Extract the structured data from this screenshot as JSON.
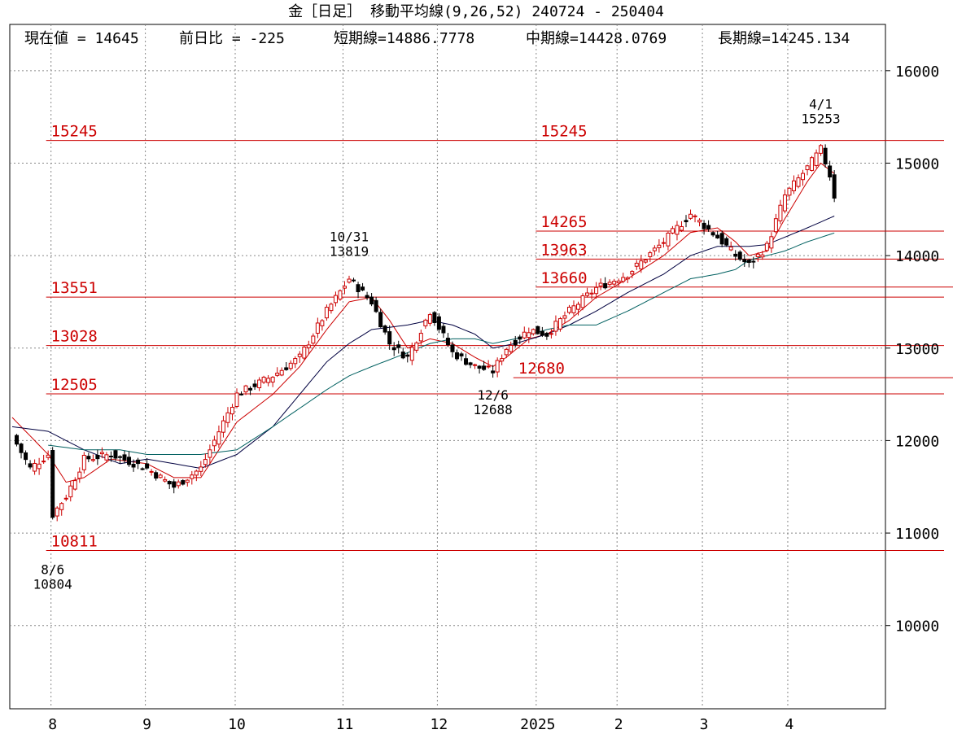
{
  "title": "金［日足］ 移動平均線(9,26,52) 240724 - 250404",
  "info": {
    "current": "現在値 = 14645",
    "change": "前日比 = -225",
    "short": "短期線=14886.7778",
    "mid": "中期線=14428.0769",
    "long": "長期線=14245.134"
  },
  "colors": {
    "bull": "#cc0000",
    "bear": "#000000",
    "ma_short": "#cc0000",
    "ma_mid": "#000040",
    "ma_long": "#006060",
    "level": "#cc0000",
    "grid": "#888888"
  },
  "chart_data": {
    "type": "candlestick",
    "title": "金［日足］ 移動平均線(9,26,52) 240724 - 250404",
    "ylim": [
      9100,
      16500
    ],
    "y_ticks": [
      10000,
      11000,
      12000,
      13000,
      14000,
      15000,
      16000
    ],
    "y_tick_labels": [
      "10000",
      "11000",
      "12000",
      "13000",
      "14000",
      "15000",
      "16000"
    ],
    "x_labels": [
      "8",
      "9",
      "10",
      "11",
      "12",
      "2025",
      "2",
      "3",
      "4"
    ],
    "levels": [
      {
        "value": 15245,
        "label": "15245",
        "x_from": 9,
        "label_at": [
          9,
          118
        ]
      },
      {
        "value": 14265,
        "label": "14265",
        "x_from": 118,
        "label_at": [
          118
        ]
      },
      {
        "value": 13963,
        "label": "13963",
        "x_from": 118,
        "label_at": [
          118
        ]
      },
      {
        "value": 13660,
        "label": "13660",
        "x_from": 118,
        "x_to": 231,
        "label_at": [
          118
        ]
      },
      {
        "value": 13551,
        "label": "13551",
        "x_from": 9,
        "label_at": [
          9
        ]
      },
      {
        "value": 13028,
        "label": "13028",
        "x_from": 9,
        "label_at": [
          9
        ]
      },
      {
        "value": 12680,
        "label": "12680",
        "x_from": 113,
        "x_to": 231,
        "label_at": [
          113
        ]
      },
      {
        "value": 12505,
        "label": "12505",
        "x_from": 9,
        "label_at": [
          9
        ]
      },
      {
        "value": 10811,
        "label": "10811",
        "x_from": 9,
        "label_at": [
          9
        ]
      }
    ],
    "annotations": [
      {
        "date": "8/6",
        "value": "10804",
        "x": 9,
        "price": 10804,
        "pos": "below"
      },
      {
        "date": "10/31",
        "value": "13819",
        "x": 75,
        "price": 13819,
        "pos": "above"
      },
      {
        "date": "12/6",
        "value": "12688",
        "x": 107,
        "price": 12688,
        "pos": "below"
      },
      {
        "date": "4/1",
        "value": "15253",
        "x": 180,
        "price": 15253,
        "pos": "above"
      }
    ],
    "series_anchors": {
      "candles": [
        [
          0,
          12050
        ],
        [
          4,
          11700
        ],
        [
          8,
          11850
        ],
        [
          9,
          11200
        ],
        [
          12,
          11400
        ],
        [
          16,
          11800
        ],
        [
          22,
          11850
        ],
        [
          30,
          11700
        ],
        [
          36,
          11500
        ],
        [
          42,
          11700
        ],
        [
          50,
          12500
        ],
        [
          58,
          12700
        ],
        [
          64,
          12900
        ],
        [
          70,
          13400
        ],
        [
          75,
          13750
        ],
        [
          80,
          13500
        ],
        [
          84,
          13050
        ],
        [
          88,
          12900
        ],
        [
          93,
          13400
        ],
        [
          98,
          12950
        ],
        [
          103,
          12800
        ],
        [
          107,
          12750
        ],
        [
          110,
          13000
        ],
        [
          115,
          13200
        ],
        [
          119,
          13150
        ],
        [
          124,
          13400
        ],
        [
          130,
          13650
        ],
        [
          137,
          13800
        ],
        [
          145,
          14150
        ],
        [
          151,
          14450
        ],
        [
          157,
          14200
        ],
        [
          161,
          14000
        ],
        [
          164,
          13900
        ],
        [
          168,
          14100
        ],
        [
          172,
          14650
        ],
        [
          177,
          14950
        ],
        [
          180,
          15150
        ],
        [
          182,
          14870
        ],
        [
          183,
          14645
        ]
      ],
      "ma_short": [
        [
          0,
          12250
        ],
        [
          8,
          11850
        ],
        [
          12,
          11550
        ],
        [
          16,
          11600
        ],
        [
          22,
          11800
        ],
        [
          30,
          11750
        ],
        [
          36,
          11600
        ],
        [
          42,
          11600
        ],
        [
          50,
          12200
        ],
        [
          58,
          12500
        ],
        [
          64,
          12800
        ],
        [
          70,
          13200
        ],
        [
          75,
          13500
        ],
        [
          80,
          13550
        ],
        [
          84,
          13300
        ],
        [
          88,
          13000
        ],
        [
          93,
          13100
        ],
        [
          98,
          13050
        ],
        [
          103,
          12900
        ],
        [
          107,
          12800
        ],
        [
          110,
          12900
        ],
        [
          115,
          13100
        ],
        [
          119,
          13150
        ],
        [
          124,
          13300
        ],
        [
          130,
          13550
        ],
        [
          137,
          13750
        ],
        [
          145,
          14000
        ],
        [
          151,
          14250
        ],
        [
          157,
          14300
        ],
        [
          161,
          14150
        ],
        [
          164,
          14000
        ],
        [
          168,
          14050
        ],
        [
          172,
          14400
        ],
        [
          177,
          14800
        ],
        [
          180,
          15000
        ],
        [
          183,
          14887
        ]
      ],
      "ma_mid": [
        [
          0,
          12150
        ],
        [
          8,
          12100
        ],
        [
          16,
          11900
        ],
        [
          24,
          11750
        ],
        [
          30,
          11800
        ],
        [
          36,
          11750
        ],
        [
          42,
          11700
        ],
        [
          50,
          11850
        ],
        [
          58,
          12150
        ],
        [
          64,
          12500
        ],
        [
          70,
          12850
        ],
        [
          75,
          13050
        ],
        [
          80,
          13200
        ],
        [
          88,
          13250
        ],
        [
          93,
          13300
        ],
        [
          98,
          13250
        ],
        [
          103,
          13150
        ],
        [
          107,
          13000
        ],
        [
          112,
          13050
        ],
        [
          119,
          13150
        ],
        [
          124,
          13250
        ],
        [
          130,
          13400
        ],
        [
          137,
          13600
        ],
        [
          145,
          13800
        ],
        [
          151,
          14000
        ],
        [
          157,
          14100
        ],
        [
          161,
          14100
        ],
        [
          164,
          14100
        ],
        [
          168,
          14120
        ],
        [
          172,
          14200
        ],
        [
          177,
          14300
        ],
        [
          183,
          14428
        ]
      ],
      "ma_long": [
        [
          8,
          11950
        ],
        [
          16,
          11900
        ],
        [
          24,
          11900
        ],
        [
          30,
          11850
        ],
        [
          36,
          11850
        ],
        [
          42,
          11850
        ],
        [
          50,
          11900
        ],
        [
          58,
          12150
        ],
        [
          64,
          12350
        ],
        [
          70,
          12550
        ],
        [
          75,
          12700
        ],
        [
          80,
          12800
        ],
        [
          88,
          12950
        ],
        [
          93,
          13050
        ],
        [
          98,
          13100
        ],
        [
          103,
          13100
        ],
        [
          107,
          13050
        ],
        [
          112,
          13100
        ],
        [
          119,
          13200
        ],
        [
          124,
          13250
        ],
        [
          130,
          13250
        ],
        [
          137,
          13400
        ],
        [
          145,
          13600
        ],
        [
          151,
          13750
        ],
        [
          157,
          13800
        ],
        [
          161,
          13850
        ],
        [
          164,
          13950
        ],
        [
          168,
          14000
        ],
        [
          172,
          14050
        ],
        [
          177,
          14150
        ],
        [
          183,
          14245
        ]
      ]
    },
    "x_label_positions": [
      9,
      30,
      50,
      74,
      95,
      117,
      135,
      154,
      173
    ],
    "n_days": 184
  }
}
